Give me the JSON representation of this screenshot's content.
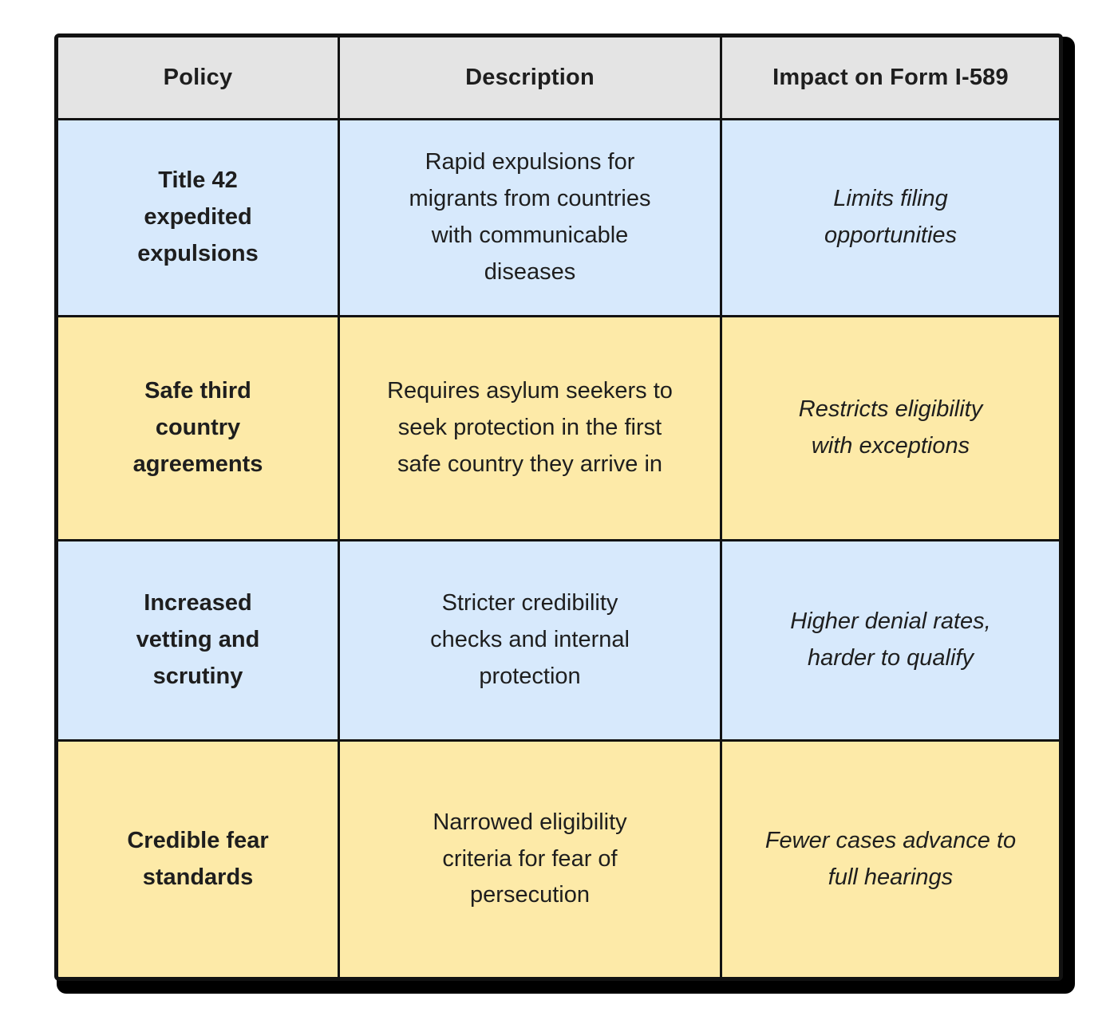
{
  "chart_data": {
    "type": "table",
    "title": "",
    "columns": [
      "Policy",
      "Description",
      "Impact on Form I-589"
    ],
    "rows": [
      [
        "Title 42 expedited expulsions",
        "Rapid expulsions for migrants from countries with communicable diseases",
        "Limits filing opportunities"
      ],
      [
        "Safe third country agreements",
        "Requires asylum seekers to seek protection in the first safe country they arrive in",
        "Restricts eligibility with exceptions"
      ],
      [
        "Increased vetting and scrutiny",
        "Stricter credibility checks and internal protection",
        "Higher denial rates, harder to qualify"
      ],
      [
        "Credible fear standards",
        "Narrowed eligibility criteria for fear of persecution",
        "Fewer cases advance to full hearings"
      ]
    ],
    "layout_hints": {
      "header_bg": "#e4e4e4",
      "row_bgs_alternating": [
        "#d7e9fc",
        "#fdeaa8"
      ],
      "policy_column_style": "bold",
      "impact_column_style": "italic",
      "border_color": "#121212",
      "shadow": "solid black, offset bottom-right",
      "grid_on": true
    }
  },
  "display": {
    "header": {
      "policy": "Policy",
      "description": "Description",
      "impact": "Impact on Form I-589"
    },
    "rows": [
      {
        "policy": "Title 42\nexpedited\nexpulsions",
        "description": "Rapid expulsions for\nmigrants from countries\nwith communicable\ndiseases",
        "impact": "Limits filing\nopportunities"
      },
      {
        "policy": "Safe third\ncountry\nagreements",
        "description": "Requires asylum seekers to\nseek protection in the first\nsafe country they arrive in",
        "impact": "Restricts eligibility\nwith exceptions"
      },
      {
        "policy": "Increased\nvetting and\nscrutiny",
        "description": "Stricter credibility\nchecks and internal\nprotection",
        "impact": "Higher denial rates,\nharder to qualify"
      },
      {
        "policy": "Credible fear\nstandards",
        "description": "Narrowed eligibility\ncriteria for fear of\npersecution",
        "impact": "Fewer cases advance to\nfull hearings"
      }
    ]
  },
  "colors": {
    "page_bg": "#ffffff",
    "header_bg": "#e4e4e4",
    "blue_row_bg": "#d7e9fc",
    "yellow_row_bg": "#fdeaa8",
    "border": "#121212",
    "shadow": "#000000",
    "text": "#1e1e1e"
  }
}
